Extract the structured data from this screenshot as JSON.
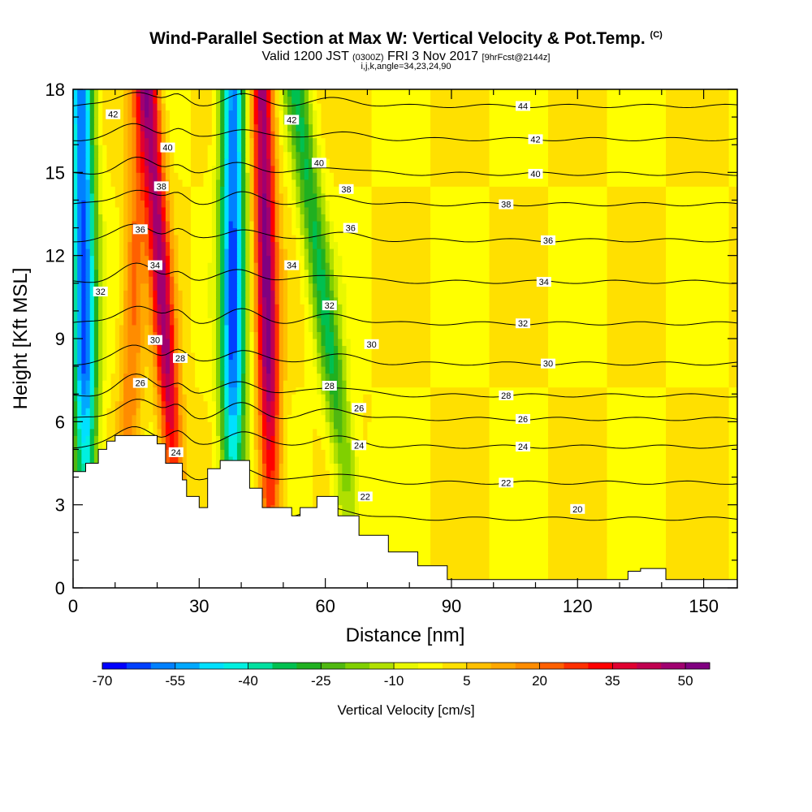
{
  "header": {
    "title": "Wind-Parallel Section at Max W: Vertical Velocity & Pot.Temp.",
    "copyright": "(C)",
    "valid_prefix": "Valid 1200 JST",
    "utc": "(0300Z)",
    "valid_date": "FRI 3 Nov 2017",
    "forecast": "[9hrFcst@2144z]",
    "indices": "i,j,k,angle=34,23,24,90"
  },
  "chart_data": {
    "type": "heatmap",
    "xlabel": "Distance [nm]",
    "ylabel": "Height [Kft MSL]",
    "xlim": [
      0,
      158
    ],
    "ylim": [
      0,
      18
    ],
    "x_ticks": [
      0,
      30,
      60,
      90,
      120,
      150
    ],
    "y_ticks": [
      0,
      3,
      6,
      9,
      12,
      15,
      18
    ],
    "grid": false,
    "colorbar": {
      "title": "Vertical Velocity [cm/s]",
      "labels": [
        "-70",
        "-55",
        "-40",
        "-25",
        "-10",
        "5",
        "20",
        "35",
        "50"
      ],
      "levels": [
        -70,
        -65,
        -60,
        -55,
        -50,
        -45,
        -40,
        -35,
        -30,
        -25,
        -20,
        -15,
        -10,
        -5,
        0,
        5,
        10,
        15,
        20,
        25,
        30,
        35,
        40,
        45,
        50,
        55
      ],
      "colors": [
        "#0000ff",
        "#0040ff",
        "#0080ff",
        "#00a8ff",
        "#00e0ff",
        "#00f0e0",
        "#00e0a0",
        "#00c050",
        "#20b020",
        "#50b810",
        "#80d000",
        "#b0e000",
        "#e8f800",
        "#ffff00",
        "#ffe000",
        "#ffc000",
        "#ffa800",
        "#ff8c00",
        "#ff6000",
        "#ff3000",
        "#ff0000",
        "#e00030",
        "#c00050",
        "#a00070",
        "#800080"
      ]
    },
    "vertical_velocity_features": [
      {
        "kind": "updraft",
        "x_base": 24,
        "x_top": 18,
        "peak": 45
      },
      {
        "kind": "downdraft",
        "x_base": 3,
        "x_top": 2,
        "peak": -60
      },
      {
        "kind": "downdraft",
        "x_base": 38,
        "x_top": 38,
        "peak": -60
      },
      {
        "kind": "updraft",
        "x_base": 47,
        "x_top": 45,
        "peak": 50
      },
      {
        "kind": "downdraft",
        "x_base": 65,
        "x_top": 53,
        "peak": -30
      },
      {
        "kind": "updraft",
        "x_base": 13,
        "x_top": 16,
        "peak": 20
      }
    ],
    "terrain": {
      "x": [
        0,
        3,
        3,
        6,
        6,
        8,
        8,
        10,
        10,
        20,
        20,
        22,
        22,
        26,
        26,
        27,
        27,
        30,
        30,
        32,
        32,
        35,
        35,
        42,
        42,
        45,
        45,
        52,
        52,
        54,
        54,
        58,
        58,
        63,
        63,
        68,
        68,
        75,
        75,
        82,
        82,
        89,
        89,
        132,
        132,
        135,
        135,
        141,
        141,
        158
      ],
      "y": [
        4.2,
        4.2,
        4.5,
        4.5,
        5.0,
        5.0,
        5.3,
        5.3,
        5.5,
        5.5,
        5.2,
        5.2,
        4.5,
        4.5,
        3.9,
        3.9,
        3.3,
        3.3,
        2.9,
        2.9,
        4.3,
        4.3,
        4.6,
        4.6,
        3.6,
        3.6,
        2.9,
        2.9,
        2.6,
        2.6,
        2.9,
        2.9,
        3.3,
        3.3,
        2.6,
        2.6,
        1.9,
        1.9,
        1.3,
        1.3,
        0.8,
        0.8,
        0.3,
        0.3,
        0.6,
        0.6,
        0.7,
        0.7,
        0.3,
        0.3
      ]
    },
    "pot_temp_contours": [
      {
        "level": 20,
        "y_base": 2.5
      },
      {
        "level": 22,
        "y_base": 3.8
      },
      {
        "level": 24,
        "y_base": 5.1
      },
      {
        "level": 26,
        "y_base": 6.1
      },
      {
        "level": 28,
        "y_base": 6.95
      },
      {
        "level": 30,
        "y_base": 8.1
      },
      {
        "level": 32,
        "y_base": 9.55
      },
      {
        "level": 34,
        "y_base": 11.05
      },
      {
        "level": 36,
        "y_base": 12.55
      },
      {
        "level": 38,
        "y_base": 13.85
      },
      {
        "level": 40,
        "y_base": 14.95
      },
      {
        "level": 42,
        "y_base": 16.2
      },
      {
        "level": 44,
        "y_base": 17.4
      }
    ],
    "contour_labels": [
      {
        "text": "20",
        "x": 120.0,
        "y": 2.85
      },
      {
        "text": "22",
        "x": 103.0,
        "y": 3.8
      },
      {
        "text": "22",
        "x": 69.5,
        "y": 3.3
      },
      {
        "text": "24",
        "x": 107.0,
        "y": 5.1
      },
      {
        "text": "24",
        "x": 68.0,
        "y": 5.15
      },
      {
        "text": "24",
        "x": 24.5,
        "y": 4.9
      },
      {
        "text": "26",
        "x": 107.0,
        "y": 6.1
      },
      {
        "text": "26",
        "x": 68.0,
        "y": 6.5
      },
      {
        "text": "26",
        "x": 16.0,
        "y": 7.4
      },
      {
        "text": "28",
        "x": 103.0,
        "y": 6.95
      },
      {
        "text": "28",
        "x": 61.0,
        "y": 7.3
      },
      {
        "text": "28",
        "x": 25.5,
        "y": 8.3
      },
      {
        "text": "30",
        "x": 113.0,
        "y": 8.1
      },
      {
        "text": "30",
        "x": 71.0,
        "y": 8.8
      },
      {
        "text": "30",
        "x": 19.5,
        "y": 8.95
      },
      {
        "text": "32",
        "x": 107.0,
        "y": 9.55
      },
      {
        "text": "32",
        "x": 61.0,
        "y": 10.2
      },
      {
        "text": "32",
        "x": 6.5,
        "y": 10.7
      },
      {
        "text": "34",
        "x": 112.0,
        "y": 11.05
      },
      {
        "text": "34",
        "x": 52.0,
        "y": 11.65
      },
      {
        "text": "34",
        "x": 19.5,
        "y": 11.65
      },
      {
        "text": "36",
        "x": 113.0,
        "y": 12.55
      },
      {
        "text": "36",
        "x": 66.0,
        "y": 13.0
      },
      {
        "text": "36",
        "x": 16.0,
        "y": 12.95
      },
      {
        "text": "38",
        "x": 103.0,
        "y": 13.85
      },
      {
        "text": "38",
        "x": 65.0,
        "y": 14.4
      },
      {
        "text": "38",
        "x": 21.0,
        "y": 14.5
      },
      {
        "text": "40",
        "x": 110.0,
        "y": 14.95
      },
      {
        "text": "40",
        "x": 58.5,
        "y": 15.35
      },
      {
        "text": "40",
        "x": 22.5,
        "y": 15.9
      },
      {
        "text": "42",
        "x": 110.0,
        "y": 16.2
      },
      {
        "text": "42",
        "x": 52.0,
        "y": 16.9
      },
      {
        "text": "42",
        "x": 9.5,
        "y": 17.1
      },
      {
        "text": "44",
        "x": 107.0,
        "y": 17.4
      }
    ]
  }
}
